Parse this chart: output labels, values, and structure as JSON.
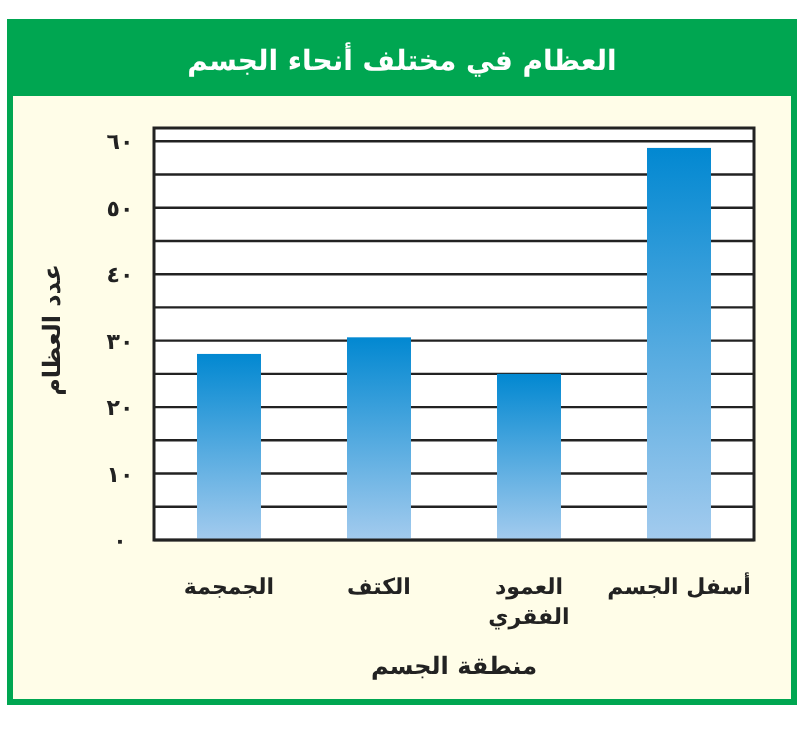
{
  "chart_data": {
    "type": "bar",
    "title": "العظام في مختلف أنحاء الجسم",
    "xlabel": "منطقة الجسم",
    "ylabel": "عدد العظام",
    "categories": [
      "الجمجمة",
      "الكتف",
      "العمود\nالفقري",
      "أسفل الجسم"
    ],
    "values": [
      28,
      30.5,
      25,
      59
    ],
    "color": "#0288d1",
    "ylim": [
      0,
      62
    ],
    "yticks": [
      {
        "value": 0,
        "label": "٠"
      },
      {
        "value": 5,
        "label": null
      },
      {
        "value": 10,
        "label": "١٠"
      },
      {
        "value": 15,
        "label": null
      },
      {
        "value": 20,
        "label": "٢٠"
      },
      {
        "value": 25,
        "label": null
      },
      {
        "value": 30,
        "label": "٣٠"
      },
      {
        "value": 35,
        "label": null
      },
      {
        "value": 40,
        "label": "٤٠"
      },
      {
        "value": 45,
        "label": null
      },
      {
        "value": 50,
        "label": "٥٠"
      },
      {
        "value": 55,
        "label": null
      },
      {
        "value": 60,
        "label": "٦٠"
      }
    ],
    "grid": "y"
  }
}
